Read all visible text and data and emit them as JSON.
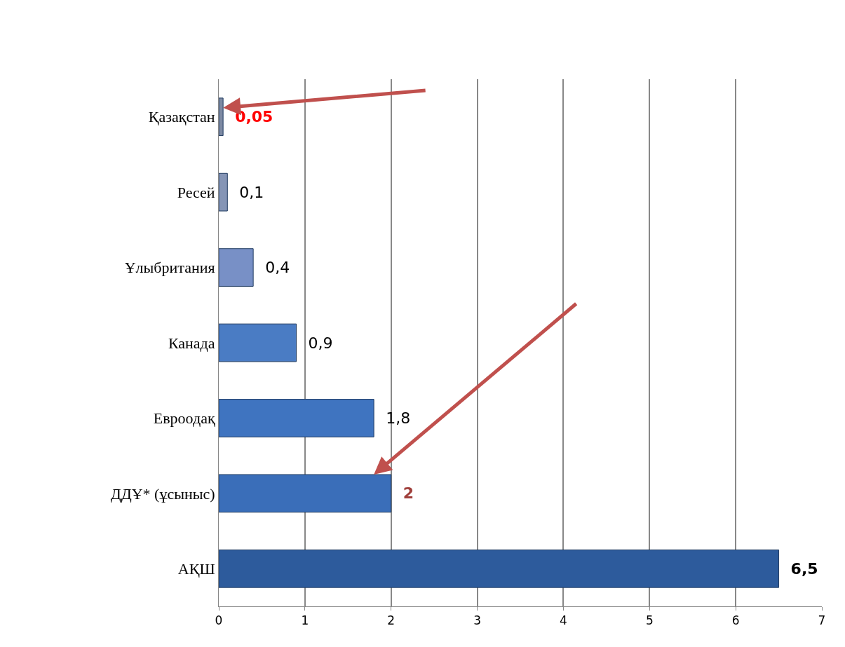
{
  "chart_data": {
    "type": "bar",
    "orientation": "horizontal",
    "categories": [
      "Қазақстан",
      "Ресей",
      "Ұлыбритания",
      "Канада",
      "Евроодақ",
      "ДДҰ* (ұсыныс)",
      "АҚШ"
    ],
    "values": [
      0.05,
      0.1,
      0.4,
      0.9,
      1.8,
      2,
      6.5
    ],
    "colors": [
      "#7d8aa3",
      "#8595b6",
      "#7890c6",
      "#4a7cc4",
      "#3f74c0",
      "#3a6eb9",
      "#2d5b9c"
    ],
    "value_labels": [
      "0,05",
      "0,1",
      "0,4",
      "0,9",
      "1,8",
      "2",
      "6,5"
    ],
    "xlim": [
      0,
      7
    ],
    "xticks": [
      0,
      1,
      2,
      3,
      4,
      5,
      6,
      7
    ],
    "grid": "x"
  }
}
